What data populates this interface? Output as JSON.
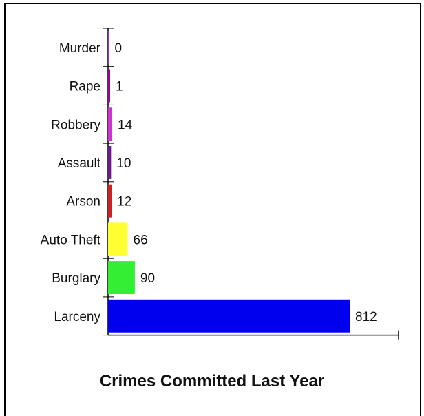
{
  "chart_data": {
    "type": "bar",
    "orientation": "horizontal",
    "title": "Crimes Committed Last Year",
    "xlabel": "",
    "ylabel": "",
    "grid": false,
    "xlim": [
      0,
      880
    ],
    "categories": [
      "Murder",
      "Rape",
      "Robbery",
      "Assault",
      "Arson",
      "Auto Theft",
      "Burglary",
      "Larceny"
    ],
    "values": [
      0,
      1,
      14,
      10,
      12,
      66,
      90,
      812
    ],
    "colors": [
      "#9b30c8",
      "#a000a0",
      "#cc33cc",
      "#6a1a8a",
      "#cc2222",
      "#ffff33",
      "#33ee33",
      "#0000ee"
    ]
  }
}
